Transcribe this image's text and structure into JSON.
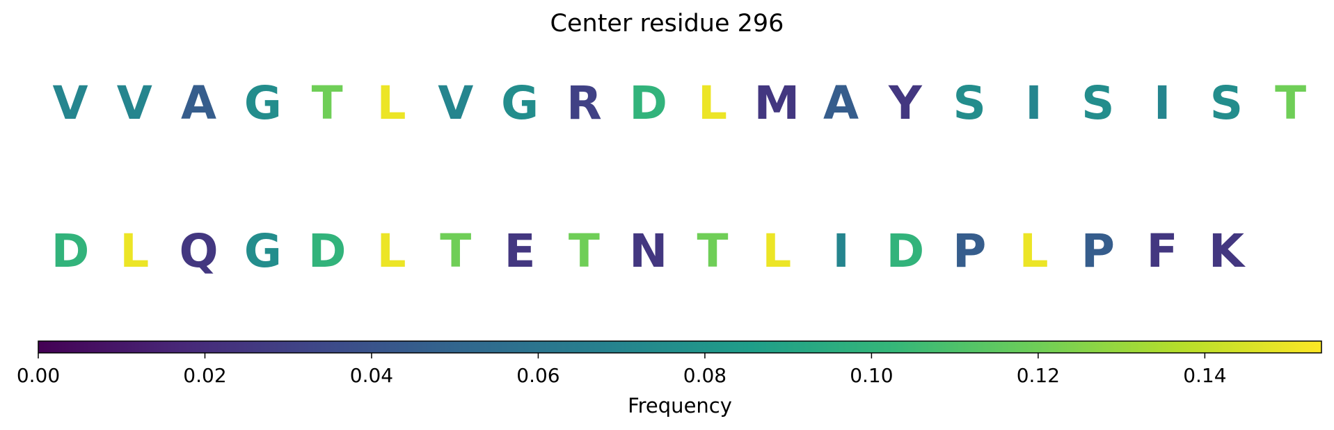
{
  "title": "Center residue 296",
  "chart_data": {
    "type": "heatmap",
    "title": "Center residue 296",
    "rows": [
      {
        "letters": [
          "V",
          "V",
          "A",
          "G",
          "T",
          "L",
          "V",
          "G",
          "R",
          "D",
          "L",
          "M",
          "A",
          "Y",
          "S",
          "I",
          "S",
          "I",
          "S",
          "T"
        ],
        "values": [
          0.07,
          0.07,
          0.045,
          0.075,
          0.12,
          0.15,
          0.07,
          0.075,
          0.03,
          0.1,
          0.15,
          0.025,
          0.045,
          0.025,
          0.075,
          0.07,
          0.075,
          0.07,
          0.075,
          0.12
        ]
      },
      {
        "letters": [
          "D",
          "L",
          "Q",
          "G",
          "D",
          "L",
          "T",
          "E",
          "T",
          "N",
          "T",
          "L",
          "I",
          "D",
          "P",
          "L",
          "P",
          "F",
          "K"
        ],
        "values": [
          0.1,
          0.15,
          0.025,
          0.075,
          0.1,
          0.15,
          0.12,
          0.025,
          0.12,
          0.025,
          0.12,
          0.15,
          0.07,
          0.1,
          0.045,
          0.15,
          0.045,
          0.025,
          0.025
        ]
      }
    ],
    "colorbar": {
      "label": "Frequency",
      "range": [
        0,
        0.154
      ],
      "ticks": [
        0.0,
        0.02,
        0.04,
        0.06,
        0.08,
        0.1,
        0.12,
        0.14
      ],
      "tick_labels": [
        "0.00",
        "0.02",
        "0.04",
        "0.06",
        "0.08",
        "0.10",
        "0.12",
        "0.14"
      ],
      "colormap": "viridis"
    }
  }
}
